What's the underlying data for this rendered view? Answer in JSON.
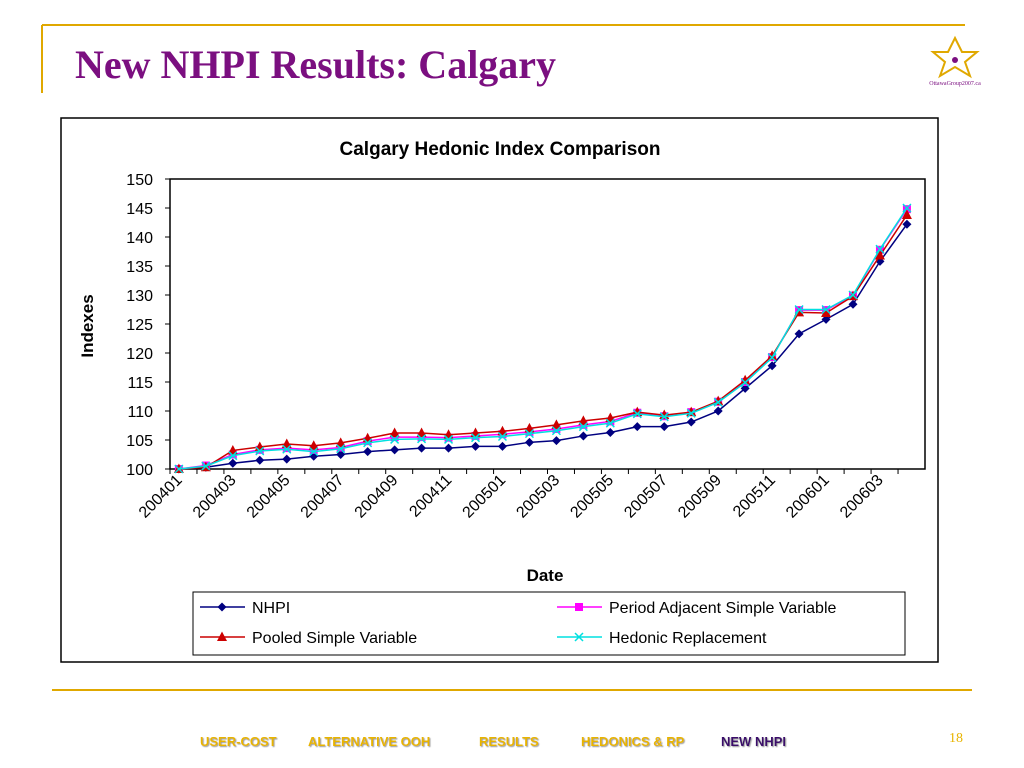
{
  "slide": {
    "title": "New NHPI Results: Calgary",
    "logo_text": "OttawaGroup2007.ca"
  },
  "chart_data": {
    "type": "line",
    "title": "Calgary Hedonic Index Comparison",
    "x_label": "Date",
    "y_label": "Indexes",
    "categories": [
      "200401",
      null,
      "200403",
      null,
      "200405",
      null,
      "200407",
      null,
      "200409",
      null,
      "200411",
      null,
      "200501",
      null,
      "200503",
      null,
      "200505",
      null,
      "200507",
      null,
      "200509",
      null,
      "200511",
      null,
      "200601",
      null,
      "200603",
      null
    ],
    "series": [
      {
        "name": "NHPI",
        "color": "#000080",
        "marker": "diamond",
        "values": [
          100,
          100.3,
          101,
          101.5,
          101.7,
          102.2,
          102.5,
          103,
          103.3,
          103.6,
          103.6,
          103.9,
          103.9,
          104.6,
          104.9,
          105.7,
          106.3,
          107.3,
          107.3,
          108.1,
          110,
          113.9,
          117.8,
          123.3,
          125.8,
          128.4,
          135.8,
          142.2
        ]
      },
      {
        "name": "Period Adjacent Simple Variable",
        "color": "#ff00ff",
        "marker": "square",
        "values": [
          100,
          100.6,
          102.5,
          103.3,
          103.6,
          103.3,
          103.7,
          104.8,
          105.5,
          105.5,
          105.4,
          105.7,
          106,
          106.4,
          106.9,
          107.6,
          108.2,
          109.7,
          109.1,
          109.8,
          111.6,
          115,
          119.3,
          127.4,
          127.4,
          129.9,
          137.8,
          144.8
        ]
      },
      {
        "name": "Pooled Simple Variable",
        "color": "#cc0000",
        "marker": "triangle",
        "values": [
          100,
          100.3,
          103.2,
          103.8,
          104.3,
          104,
          104.5,
          105.3,
          106.2,
          106.2,
          105.9,
          106.2,
          106.5,
          107,
          107.6,
          108.3,
          108.8,
          109.8,
          109.3,
          109.8,
          111.7,
          115.3,
          119.5,
          127,
          126.9,
          129.8,
          136.8,
          143.8
        ]
      },
      {
        "name": "Hedonic Replacement",
        "color": "#00e0e0",
        "marker": "x",
        "values": [
          100,
          100.5,
          102.3,
          103.1,
          103.4,
          103,
          103.5,
          104.5,
          105.1,
          105.2,
          105.1,
          105.4,
          105.6,
          106.1,
          106.6,
          107.3,
          107.9,
          109.5,
          109,
          109.6,
          111.5,
          114.9,
          119.2,
          127.5,
          127.5,
          130,
          137.9,
          145
        ]
      }
    ],
    "ylim": [
      100,
      150
    ],
    "yticks": [
      100,
      105,
      110,
      115,
      120,
      125,
      130,
      135,
      140,
      145,
      150
    ],
    "grid": false,
    "legend": "bottom"
  },
  "footer": {
    "nav": [
      "USER-COST",
      "ALTERNATIVE OOH",
      "RESULTS",
      "HEDONICS & RP",
      "NEW NHPI"
    ],
    "page": "18"
  }
}
